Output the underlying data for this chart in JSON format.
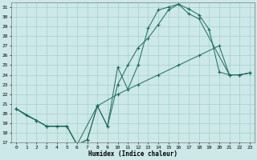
{
  "xlabel": "Humidex (Indice chaleur)",
  "bg_color": "#cce8e8",
  "grid_color": "#9dc8c8",
  "line_color": "#1a6b5a",
  "xlim": [
    -0.5,
    23.5
  ],
  "ylim": [
    17,
    31.5
  ],
  "xticks": [
    0,
    1,
    2,
    3,
    4,
    5,
    6,
    7,
    8,
    9,
    10,
    11,
    12,
    13,
    14,
    15,
    16,
    17,
    18,
    19,
    20,
    21,
    22,
    23
  ],
  "yticks": [
    17,
    18,
    19,
    20,
    21,
    22,
    23,
    24,
    25,
    26,
    27,
    28,
    29,
    30,
    31
  ],
  "curve1_x": [
    0,
    1,
    2,
    3,
    4,
    5,
    6,
    7,
    8,
    9,
    10,
    11,
    12,
    13,
    14,
    15,
    16,
    17,
    18,
    19,
    20,
    21,
    22,
    23
  ],
  "curve1_y": [
    20.5,
    19.8,
    19.3,
    18.7,
    18.7,
    18.7,
    16.8,
    17.3,
    20.8,
    18.7,
    24.8,
    22.5,
    25.0,
    28.8,
    30.7,
    31.0,
    31.3,
    30.8,
    30.2,
    28.7,
    24.3,
    24.0,
    24.0,
    24.2
  ],
  "curve2_x": [
    0,
    2,
    3,
    4,
    5,
    6,
    7,
    8,
    9,
    10,
    11,
    12,
    13,
    14,
    15,
    16,
    17,
    18,
    21,
    22,
    23
  ],
  "curve2_y": [
    20.5,
    19.3,
    18.7,
    18.7,
    18.7,
    16.8,
    17.3,
    20.8,
    18.7,
    23.0,
    25.0,
    26.8,
    27.8,
    29.2,
    30.7,
    31.3,
    30.3,
    29.8,
    24.0,
    24.0,
    24.2
  ],
  "curve3_x": [
    0,
    2,
    3,
    5,
    6,
    8,
    10,
    12,
    14,
    16,
    18,
    20,
    21,
    22,
    23
  ],
  "curve3_y": [
    20.5,
    19.3,
    18.7,
    18.7,
    16.8,
    20.8,
    22.0,
    23.0,
    24.0,
    25.0,
    26.0,
    27.0,
    24.0,
    24.0,
    24.2
  ]
}
